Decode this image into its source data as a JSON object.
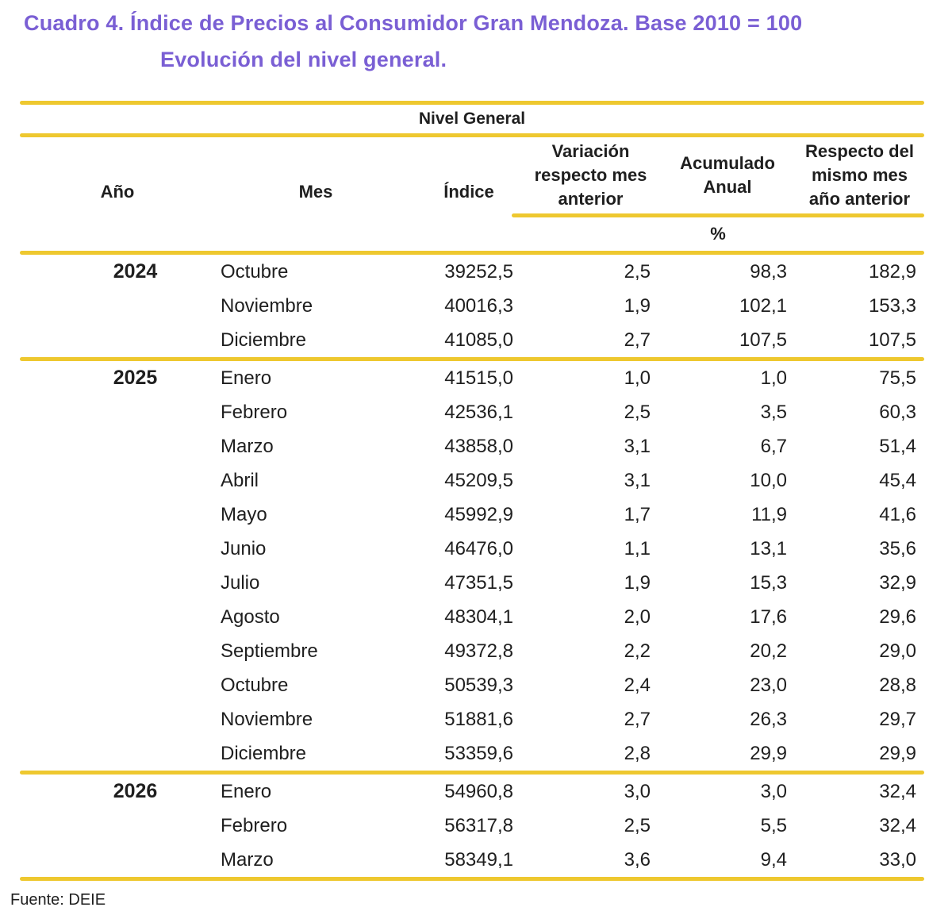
{
  "title": {
    "line1": "Cuadro 4. Índice de Precios al Consumidor Gran Mendoza. Base 2010 = 100",
    "line2": "Evolución del nivel general."
  },
  "table": {
    "group_header": "Nivel General",
    "columns": [
      "Año",
      "Mes",
      "Índice",
      "Variación\nrespecto mes\nanterior",
      "Acumulado\nAnual",
      "Respecto del\nmismo mes\naño anterior"
    ],
    "unit_label": "%",
    "groups": [
      {
        "year": "2024",
        "rows": [
          [
            "Octubre",
            "39252,5",
            "2,5",
            "98,3",
            "182,9"
          ],
          [
            "Noviembre",
            "40016,3",
            "1,9",
            "102,1",
            "153,3"
          ],
          [
            "Diciembre",
            "41085,0",
            "2,7",
            "107,5",
            "107,5"
          ]
        ]
      },
      {
        "year": "2025",
        "rows": [
          [
            "Enero",
            "41515,0",
            "1,0",
            "1,0",
            "75,5"
          ],
          [
            "Febrero",
            "42536,1",
            "2,5",
            "3,5",
            "60,3"
          ],
          [
            "Marzo",
            "43858,0",
            "3,1",
            "6,7",
            "51,4"
          ],
          [
            "Abril",
            "45209,5",
            "3,1",
            "10,0",
            "45,4"
          ],
          [
            "Mayo",
            "45992,9",
            "1,7",
            "11,9",
            "41,6"
          ],
          [
            "Junio",
            "46476,0",
            "1,1",
            "13,1",
            "35,6"
          ],
          [
            "Julio",
            "47351,5",
            "1,9",
            "15,3",
            "32,9"
          ],
          [
            "Agosto",
            "48304,1",
            "2,0",
            "17,6",
            "29,6"
          ],
          [
            "Septiembre",
            "49372,8",
            "2,2",
            "20,2",
            "29,0"
          ],
          [
            "Octubre",
            "50539,3",
            "2,4",
            "23,0",
            "28,8"
          ],
          [
            "Noviembre",
            "51881,6",
            "2,7",
            "26,3",
            "29,7"
          ],
          [
            "Diciembre",
            "53359,6",
            "2,8",
            "29,9",
            "29,9"
          ]
        ]
      },
      {
        "year": "2026",
        "rows": [
          [
            "Enero",
            "54960,8",
            "3,0",
            "3,0",
            "32,4"
          ],
          [
            "Febrero",
            "56317,8",
            "2,5",
            "5,5",
            "32,4"
          ],
          [
            "Marzo",
            "58349,1",
            "3,6",
            "9,4",
            "33,0"
          ]
        ]
      }
    ]
  },
  "footer": {
    "source": "Fuente: DEIE"
  },
  "colors": {
    "title_purple": "#7a5fd4",
    "rule_yellow": "#eec82f",
    "text": "#1f1f1f"
  }
}
